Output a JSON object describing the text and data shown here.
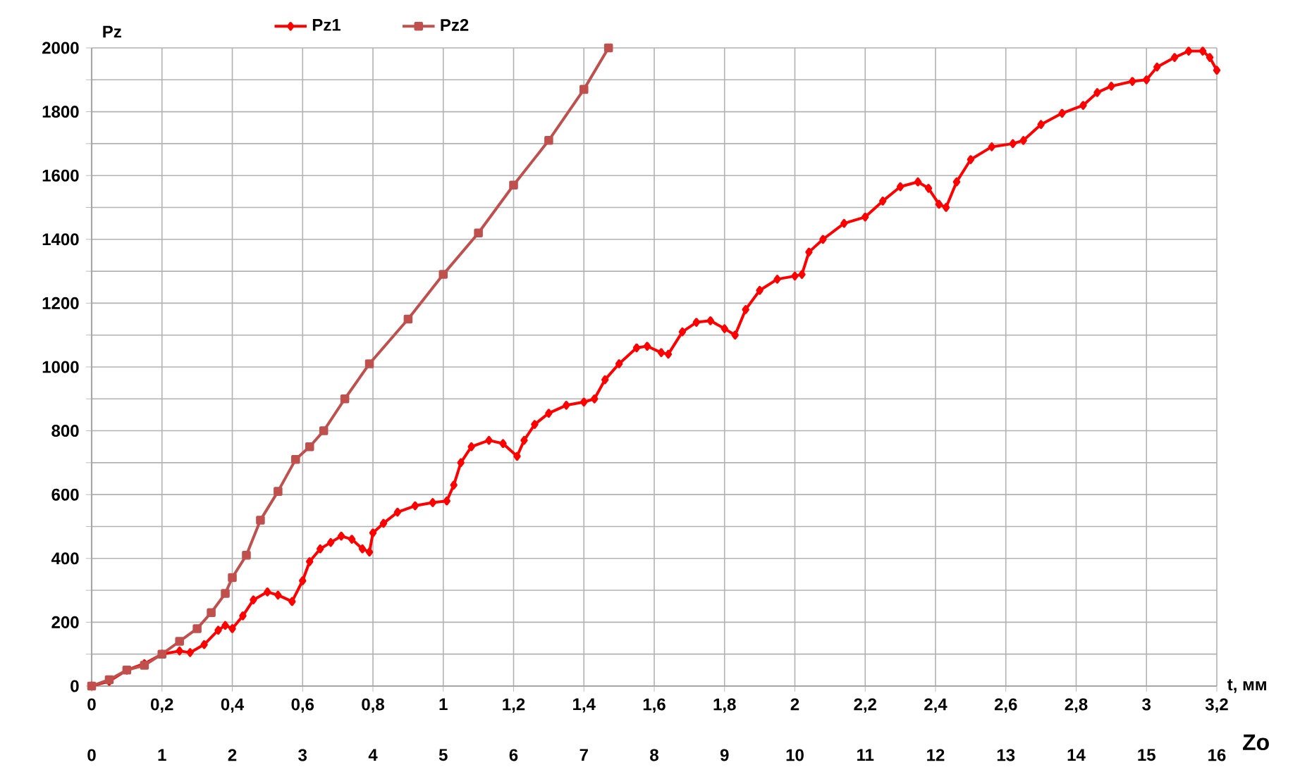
{
  "chart_data": {
    "type": "line",
    "xlabel": "t, мм",
    "ylabel": "Pz",
    "x2label": "Zo",
    "xlim": [
      0,
      3.2
    ],
    "xticks": [
      0,
      {
        "value": 0.2,
        "label": "0,2"
      },
      {
        "value": 0.4,
        "label": "0,4"
      },
      {
        "value": 0.6,
        "label": "0,6"
      },
      {
        "value": 0.8,
        "label": "0,8"
      },
      1,
      {
        "value": 1.2,
        "label": "1,2"
      },
      {
        "value": 1.4,
        "label": "1,4"
      },
      {
        "value": 1.6,
        "label": "1,6"
      },
      {
        "value": 1.8,
        "label": "1,8"
      },
      2,
      {
        "value": 2.2,
        "label": "2,2"
      },
      {
        "value": 2.4,
        "label": "2,4"
      },
      {
        "value": 2.6,
        "label": "2,6"
      },
      {
        "value": 2.8,
        "label": "2,8"
      },
      3,
      {
        "value": 3.2,
        "label": "3,2"
      }
    ],
    "x2lim": [
      0,
      16
    ],
    "x2ticks": [
      0,
      1,
      2,
      3,
      4,
      5,
      6,
      7,
      8,
      9,
      10,
      11,
      12,
      13,
      14,
      15,
      16
    ],
    "ylim": [
      0,
      2000
    ],
    "yticks": [
      0,
      {
        "value": 100,
        "label": null
      },
      200,
      {
        "value": 300,
        "label": null
      },
      400,
      {
        "value": 500,
        "label": null
      },
      600,
      {
        "value": 700,
        "label": null
      },
      800,
      {
        "value": 900,
        "label": null
      },
      1000,
      {
        "value": 1100,
        "label": null
      },
      1200,
      {
        "value": 1300,
        "label": null
      },
      1400,
      {
        "value": 1500,
        "label": null
      },
      1600,
      {
        "value": 1700,
        "label": null
      },
      1800,
      {
        "value": 1900,
        "label": null
      },
      2000
    ],
    "grid": true,
    "legend": "top",
    "series": [
      {
        "name": "Pz1",
        "color": "#ff0000",
        "marker": "diamond",
        "x": [
          0,
          0.05,
          0.1,
          0.15,
          0.2,
          0.25,
          0.28,
          0.32,
          0.36,
          0.38,
          0.4,
          0.43,
          0.46,
          0.5,
          0.53,
          0.57,
          0.6,
          0.62,
          0.65,
          0.68,
          0.71,
          0.74,
          0.77,
          0.79,
          0.8,
          0.83,
          0.87,
          0.92,
          0.97,
          1.01,
          1.03,
          1.05,
          1.08,
          1.13,
          1.17,
          1.21,
          1.23,
          1.26,
          1.3,
          1.35,
          1.4,
          1.43,
          1.46,
          1.5,
          1.55,
          1.58,
          1.62,
          1.64,
          1.68,
          1.72,
          1.76,
          1.8,
          1.83,
          1.86,
          1.9,
          1.95,
          2.0,
          2.02,
          2.04,
          2.08,
          2.14,
          2.2,
          2.25,
          2.3,
          2.35,
          2.38,
          2.41,
          2.43,
          2.46,
          2.5,
          2.56,
          2.62,
          2.65,
          2.7,
          2.76,
          2.82,
          2.86,
          2.9,
          2.96,
          3.0,
          3.03,
          3.08,
          3.12,
          3.16,
          3.18,
          3.2
        ],
        "values": [
          0,
          15,
          50,
          70,
          100,
          110,
          105,
          130,
          175,
          190,
          180,
          220,
          270,
          295,
          285,
          265,
          330,
          390,
          430,
          450,
          470,
          460,
          430,
          420,
          480,
          510,
          545,
          565,
          575,
          580,
          630,
          700,
          750,
          770,
          760,
          720,
          770,
          820,
          855,
          880,
          890,
          900,
          960,
          1010,
          1060,
          1065,
          1045,
          1040,
          1110,
          1140,
          1145,
          1120,
          1100,
          1180,
          1240,
          1275,
          1285,
          1290,
          1360,
          1400,
          1450,
          1470,
          1520,
          1565,
          1580,
          1560,
          1510,
          1500,
          1580,
          1650,
          1690,
          1700,
          1710,
          1760,
          1795,
          1820,
          1860,
          1880,
          1895,
          1900,
          1940,
          1970,
          1990,
          1990,
          1970,
          1930
        ]
      },
      {
        "name": "Pz2",
        "color": "#c0504d",
        "marker": "square",
        "x": [
          0,
          0.05,
          0.1,
          0.15,
          0.2,
          0.25,
          0.3,
          0.34,
          0.38,
          0.4,
          0.44,
          0.48,
          0.53,
          0.58,
          0.62,
          0.66,
          0.72,
          0.79,
          0.9,
          1.0,
          1.1,
          1.2,
          1.3,
          1.4,
          1.47
        ],
        "values": [
          0,
          20,
          50,
          65,
          100,
          140,
          180,
          230,
          290,
          340,
          410,
          520,
          610,
          710,
          750,
          800,
          900,
          1010,
          1150,
          1290,
          1420,
          1570,
          1710,
          1870,
          2000
        ]
      }
    ]
  }
}
